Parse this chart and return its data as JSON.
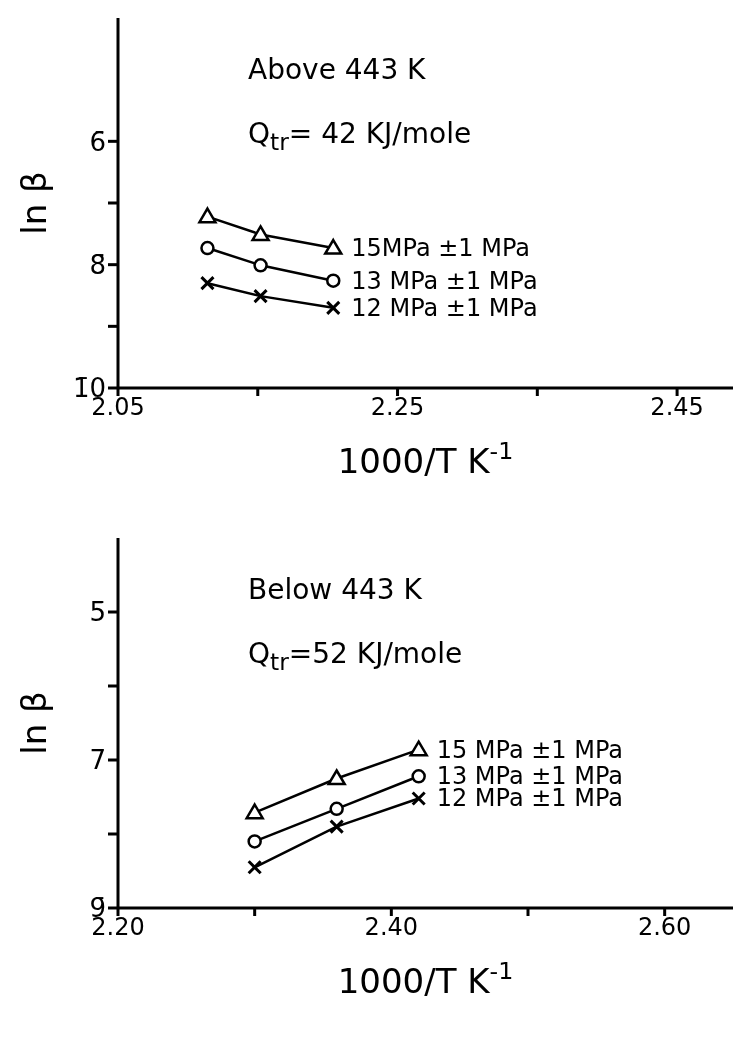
{
  "chart_data": [
    {
      "type": "line",
      "annotations": [
        "Above 443 K",
        "Q$_{tr}$= 42 KJ/mole"
      ],
      "xlabel": "1000/T K$^{-1}$",
      "ylabel": "ln β",
      "xlim": [
        2.05,
        2.49
      ],
      "xticks": [
        {
          "value": 2.05,
          "label": "2.05"
        },
        {
          "value": 2.15,
          "label": null
        },
        {
          "value": 2.25,
          "label": "2.25"
        },
        {
          "value": 2.35,
          "label": null
        },
        {
          "value": 2.45,
          "label": "2.45"
        }
      ],
      "ylim": [
        -10,
        -4
      ],
      "yticks": [
        {
          "value": -10,
          "label": "1̄0"
        },
        {
          "value": -9,
          "label": null
        },
        {
          "value": -8,
          "label": "8̄"
        },
        {
          "value": -7,
          "label": null
        },
        {
          "value": -6,
          "label": "6̄"
        }
      ],
      "grid": false,
      "legend": false,
      "line_style": "solid",
      "series": [
        {
          "name": "15MPa  ±1 MPa",
          "color": "#000000",
          "marker": "triangle",
          "x": [
            2.114,
            2.152,
            2.204
          ],
          "values": [
            -7.22,
            -7.51,
            -7.73
          ]
        },
        {
          "name": "13 MPa ±1 MPa",
          "color": "#000000",
          "marker": "circle",
          "x": [
            2.114,
            2.152,
            2.204
          ],
          "values": [
            -7.73,
            -8.01,
            -8.26
          ]
        },
        {
          "name": "12 MPa ±1 MPa",
          "color": "#000000",
          "marker": "cross",
          "x": [
            2.114,
            2.152,
            2.204
          ],
          "values": [
            -8.3,
            -8.51,
            -8.7
          ]
        }
      ]
    },
    {
      "type": "line",
      "annotations": [
        "Below 443 K",
        "Q$_{tr}$=52 KJ/mole"
      ],
      "xlabel": "1000/T K$^{-1}$",
      "ylabel": "ln β",
      "xlim": [
        2.2,
        2.65
      ],
      "xticks": [
        {
          "value": 2.2,
          "label": "2.20"
        },
        {
          "value": 2.3,
          "label": null
        },
        {
          "value": 2.4,
          "label": "2.40"
        },
        {
          "value": 2.5,
          "label": null
        },
        {
          "value": 2.6,
          "label": "2.60"
        }
      ],
      "ylim": [
        -9,
        -4
      ],
      "yticks": [
        {
          "value": -9,
          "label": "9̄"
        },
        {
          "value": -8,
          "label": null
        },
        {
          "value": -7,
          "label": "7̄"
        },
        {
          "value": -6,
          "label": null
        },
        {
          "value": -5,
          "label": "5̄"
        }
      ],
      "grid": false,
      "legend": false,
      "line_style": "solid",
      "series": [
        {
          "name": "15 MPa ±1 MPa",
          "color": "#000000",
          "marker": "triangle",
          "x": [
            2.3,
            2.36,
            2.42
          ],
          "values": [
            -7.71,
            -7.25,
            -6.86
          ]
        },
        {
          "name": "13 MPa ±1 MPa",
          "color": "#000000",
          "marker": "circle",
          "x": [
            2.3,
            2.36,
            2.42
          ],
          "values": [
            -8.1,
            -7.66,
            -7.22
          ]
        },
        {
          "name": "12 MPa ±1 MPa",
          "color": "#000000",
          "marker": "cross",
          "x": [
            2.3,
            2.36,
            2.42
          ],
          "values": [
            -8.45,
            -7.9,
            -7.52
          ]
        }
      ]
    }
  ]
}
